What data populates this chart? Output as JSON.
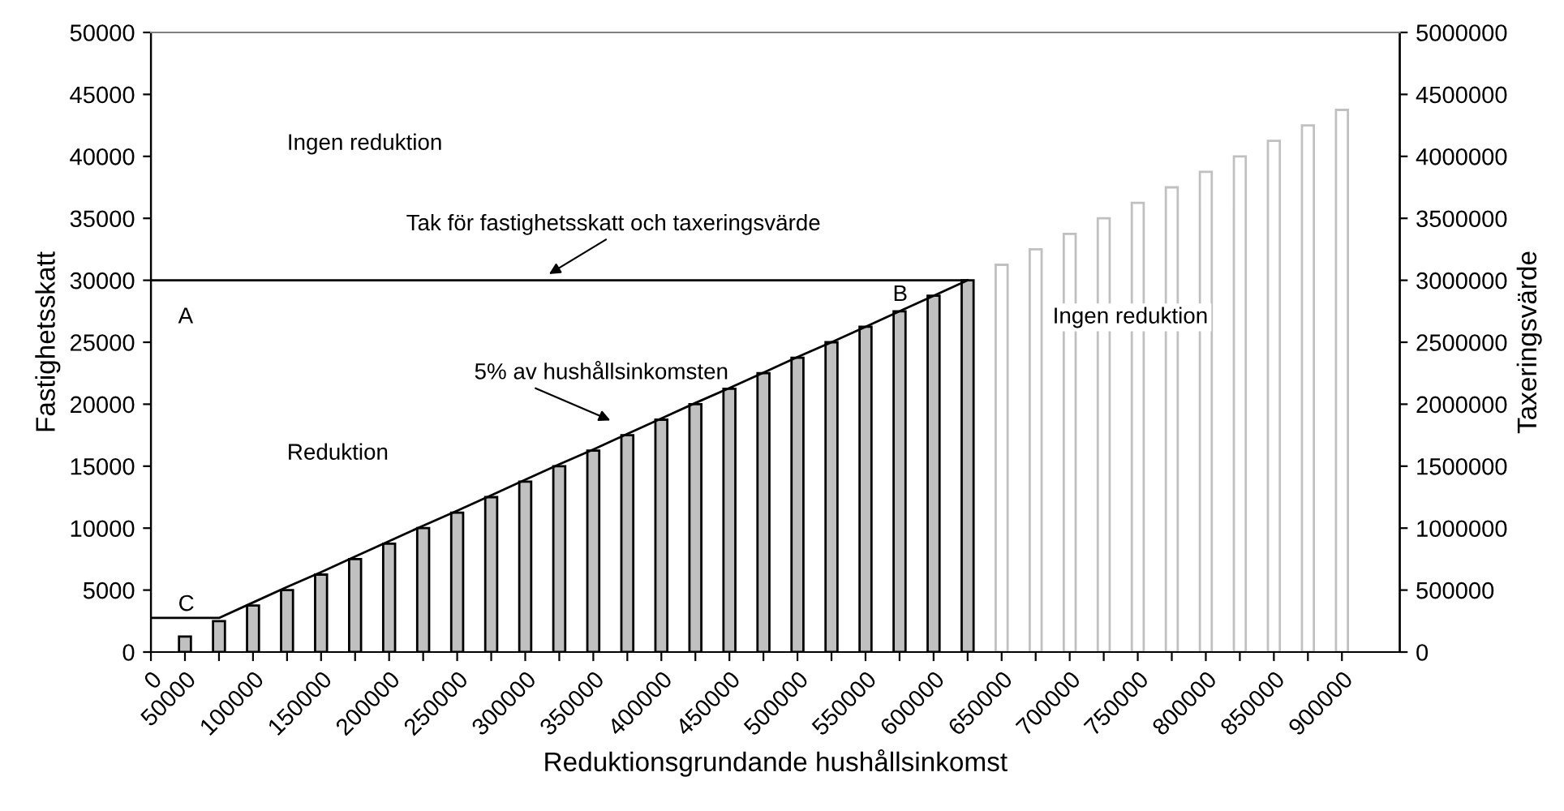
{
  "chart_data": {
    "type": "bar",
    "xlabel": "Reduktionsgrundande hushållsinkomst",
    "ylabel": "Fastighetsskatt",
    "y2label": "Taxeringsvärde",
    "categories": [
      "0",
      "50000",
      null,
      "100000",
      null,
      "150000",
      null,
      "200000",
      null,
      "250000",
      null,
      "300000",
      null,
      "350000",
      null,
      "400000",
      null,
      "450000",
      null,
      "500000",
      null,
      "550000",
      null,
      "600000",
      null,
      "650000",
      null,
      "700000",
      null,
      "750000",
      null,
      "800000",
      null,
      "850000",
      null,
      "900000"
    ],
    "series": [
      {
        "color": "#c0c0c0",
        "values": [
          null,
          1250,
          2500,
          3750,
          5000,
          6250,
          7500,
          8750,
          10000,
          11250,
          12500,
          13750,
          15000,
          16250,
          17500,
          18750,
          20000,
          21250,
          22500,
          23750,
          25000,
          26250,
          27500,
          28750,
          30000,
          null,
          null,
          null,
          null,
          null,
          null,
          null,
          null,
          null,
          null,
          null
        ]
      },
      {
        "axis": "y2",
        "color": "#ffffff",
        "values": [
          null,
          null,
          null,
          null,
          null,
          null,
          null,
          null,
          null,
          null,
          null,
          null,
          null,
          null,
          null,
          null,
          null,
          null,
          null,
          null,
          null,
          null,
          null,
          null,
          null,
          3125000,
          3250000,
          3375000,
          3500000,
          3625000,
          3750000,
          3875000,
          4000000,
          4125000,
          4250000,
          4375000
        ]
      },
      {
        "type": "line",
        "color": "#000000",
        "values": [
          2750,
          2750,
          2750,
          4000,
          5250,
          6450,
          7700,
          8950,
          10200,
          11400,
          12650,
          13900,
          15150,
          16350,
          17600,
          18850,
          20100,
          21300,
          22550,
          23800,
          25000,
          26250,
          27500,
          28750,
          30000,
          null,
          null,
          null,
          null,
          null,
          null,
          null,
          null,
          null,
          null,
          null
        ]
      },
      {
        "type": "line",
        "color": "#000000",
        "values": [
          30000,
          30000,
          30000,
          30000,
          30000,
          30000,
          30000,
          30000,
          30000,
          30000,
          30000,
          30000,
          30000,
          30000,
          30000,
          30000,
          30000,
          30000,
          30000,
          30000,
          30000,
          30000,
          30000,
          30000,
          30000,
          null,
          null,
          null,
          null,
          null,
          null,
          null,
          null,
          null,
          null,
          null
        ]
      }
    ],
    "ylim": [
      0,
      50000
    ],
    "yticks": [
      0,
      5000,
      10000,
      15000,
      20000,
      25000,
      30000,
      35000,
      40000,
      45000,
      50000
    ],
    "y2lim": [
      0,
      5000000
    ],
    "y2ticks": [
      0,
      500000,
      1000000,
      1500000,
      2000000,
      2500000,
      3000000,
      3500000,
      4000000,
      4500000,
      5000000
    ],
    "annotations": [
      "Ingen reduktion",
      "Tak för fastighetsskatt och taxeringsvärde",
      "A",
      "B",
      "5% av hushållsinkomsten",
      "Reduktion",
      "C",
      "Ingen reduktion"
    ],
    "grid": false,
    "legend": false
  }
}
